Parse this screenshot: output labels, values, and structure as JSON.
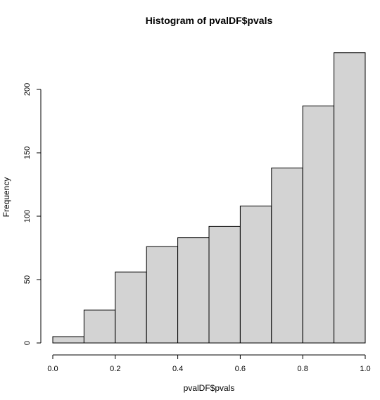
{
  "chart_data": {
    "type": "bar",
    "title": "Histogram of pvalDF$pvals",
    "xlabel": "pvalDF$pvals",
    "ylabel": "Frequency",
    "bins": [
      [
        0.0,
        0.1
      ],
      [
        0.1,
        0.2
      ],
      [
        0.2,
        0.3
      ],
      [
        0.3,
        0.4
      ],
      [
        0.4,
        0.5
      ],
      [
        0.5,
        0.6
      ],
      [
        0.6,
        0.7
      ],
      [
        0.7,
        0.8
      ],
      [
        0.8,
        0.9
      ],
      [
        0.9,
        1.0
      ]
    ],
    "values": [
      5,
      26,
      56,
      76,
      83,
      92,
      108,
      138,
      187,
      229
    ],
    "xlim": [
      0,
      1
    ],
    "ylim": [
      0,
      229
    ],
    "x_ticks": [
      0.0,
      0.2,
      0.4,
      0.6,
      0.8,
      1.0
    ],
    "x_tick_labels": [
      "0.0",
      "0.2",
      "0.4",
      "0.6",
      "0.8",
      "1.0"
    ],
    "y_ticks": [
      0,
      50,
      100,
      150,
      200
    ],
    "y_tick_labels": [
      "0",
      "50",
      "100",
      "150",
      "200"
    ],
    "bar_color": "#d3d3d3",
    "grid": false,
    "legend": "none"
  }
}
